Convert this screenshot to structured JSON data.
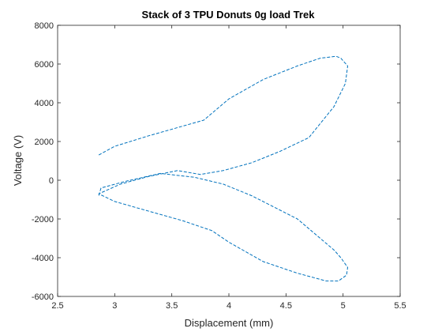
{
  "chart_data": {
    "type": "line",
    "title": "Stack of 3 TPU Donuts 0g load Trek",
    "xlabel": "Displacement (mm)",
    "ylabel": "Voltage (V)",
    "xlim": [
      2.5,
      5.5
    ],
    "ylim": [
      -6000,
      8000
    ],
    "xticks": [
      2.5,
      3,
      3.5,
      4,
      4.5,
      5,
      5.5
    ],
    "xtick_labels": [
      "2.5",
      "3",
      "3.5",
      "4",
      "4.5",
      "5",
      "5.5"
    ],
    "yticks": [
      -6000,
      -4000,
      -2000,
      0,
      2000,
      4000,
      6000,
      8000
    ],
    "ytick_labels": [
      "-6000",
      "-4000",
      "-2000",
      "0",
      "2000",
      "4000",
      "6000",
      "8000"
    ],
    "grid": false,
    "line_color": "#0072BD",
    "line_style": "dashed",
    "series": [
      {
        "x": [
          2.86,
          3.0,
          3.3,
          3.6,
          3.78,
          4.0,
          4.3,
          4.6,
          4.8,
          4.94,
          4.98,
          5.04,
          5.02,
          4.92,
          4.7,
          4.45,
          4.2,
          3.95,
          3.75,
          3.55,
          3.3,
          3.05,
          2.86,
          3.0,
          3.3,
          3.6,
          3.75,
          3.85,
          4.0,
          4.3,
          4.6,
          4.85,
          4.96,
          5.03,
          5.04,
          4.98,
          4.92,
          4.6,
          4.2,
          3.95,
          3.7,
          3.4,
          3.1,
          2.88,
          2.86
        ],
        "y": [
          1300,
          1750,
          2300,
          2800,
          3100,
          4200,
          5200,
          5900,
          6300,
          6400,
          6300,
          5900,
          5000,
          3800,
          2200,
          1500,
          900,
          500,
          300,
          500,
          200,
          -200,
          -700,
          -1100,
          -1600,
          -2100,
          -2400,
          -2600,
          -3200,
          -4200,
          -4800,
          -5200,
          -5200,
          -4900,
          -4500,
          -4000,
          -3600,
          -2000,
          -800,
          -200,
          150,
          350,
          -50,
          -400,
          -800
        ]
      }
    ]
  }
}
